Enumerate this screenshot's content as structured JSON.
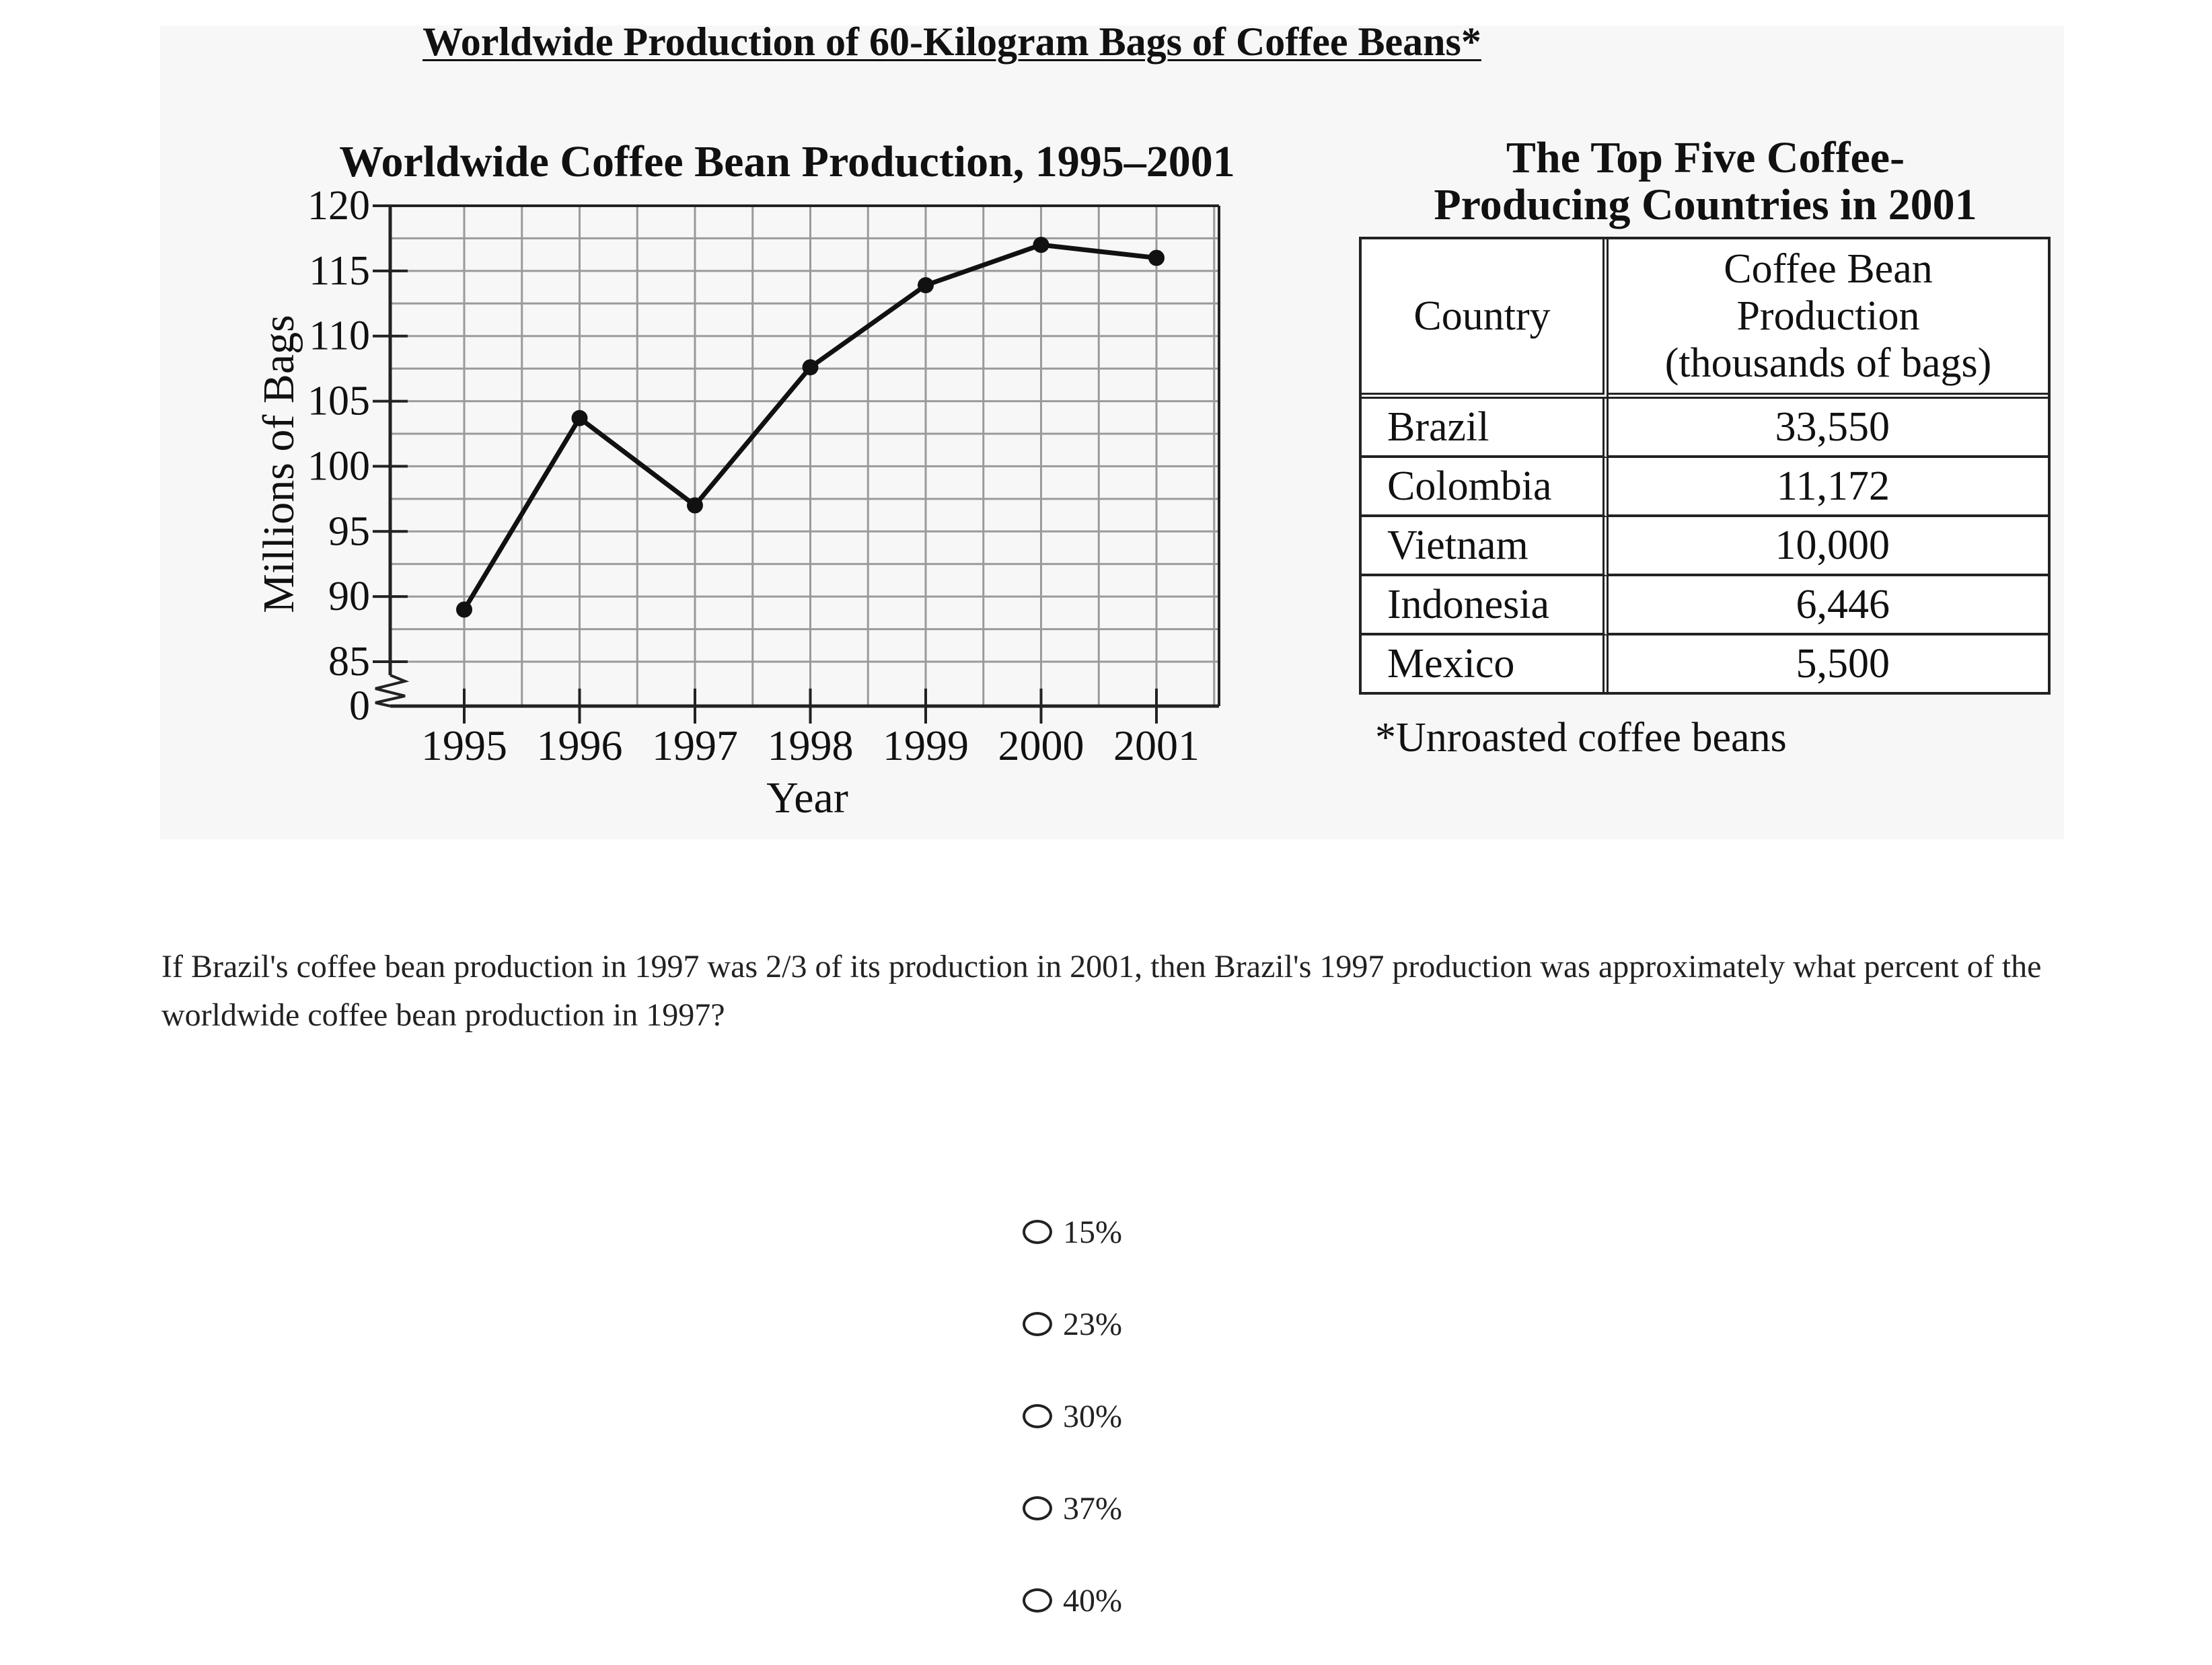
{
  "figure_title": "Worldwide Production of 60-Kilogram Bags of Coffee Beans*",
  "chart_data": {
    "type": "line",
    "title": "Worldwide Coffee Bean Production, 1995–2001",
    "xlabel": "Year",
    "ylabel": "Millions of Bags",
    "categories": [
      "1995",
      "1996",
      "1997",
      "1998",
      "1999",
      "2000",
      "2001"
    ],
    "series": [
      {
        "values": [
          89,
          103.7,
          97,
          107.6,
          113.9,
          117,
          116
        ]
      }
    ],
    "yticks": [
      0,
      85,
      90,
      95,
      100,
      105,
      110,
      115,
      120
    ],
    "ylim": [
      85,
      120
    ],
    "axis_break": true,
    "grid": true
  },
  "table": {
    "title_line1": "The Top Five Coffee-",
    "title_line2": "Producing Countries in 2001",
    "headers": [
      "Country",
      "Coffee Bean Production (thousands of bags)"
    ],
    "header2_lines": [
      "Coffee Bean",
      "Production",
      "(thousands of bags)"
    ],
    "rows": [
      [
        "Brazil",
        "33,550"
      ],
      [
        "Colombia",
        "11,172"
      ],
      [
        "Vietnam",
        "10,000"
      ],
      [
        "Indonesia",
        "6,446"
      ],
      [
        "Mexico",
        "5,500"
      ]
    ],
    "footnote": "*Unroasted coffee beans"
  },
  "question": "If Brazil's coffee bean production in 1997 was 2/3 of its production in 2001, then Brazil's 1997 production was approximately what percent of the worldwide coffee bean production in 1997?",
  "choices": [
    "15%",
    "23%",
    "30%",
    "37%",
    "40%"
  ]
}
